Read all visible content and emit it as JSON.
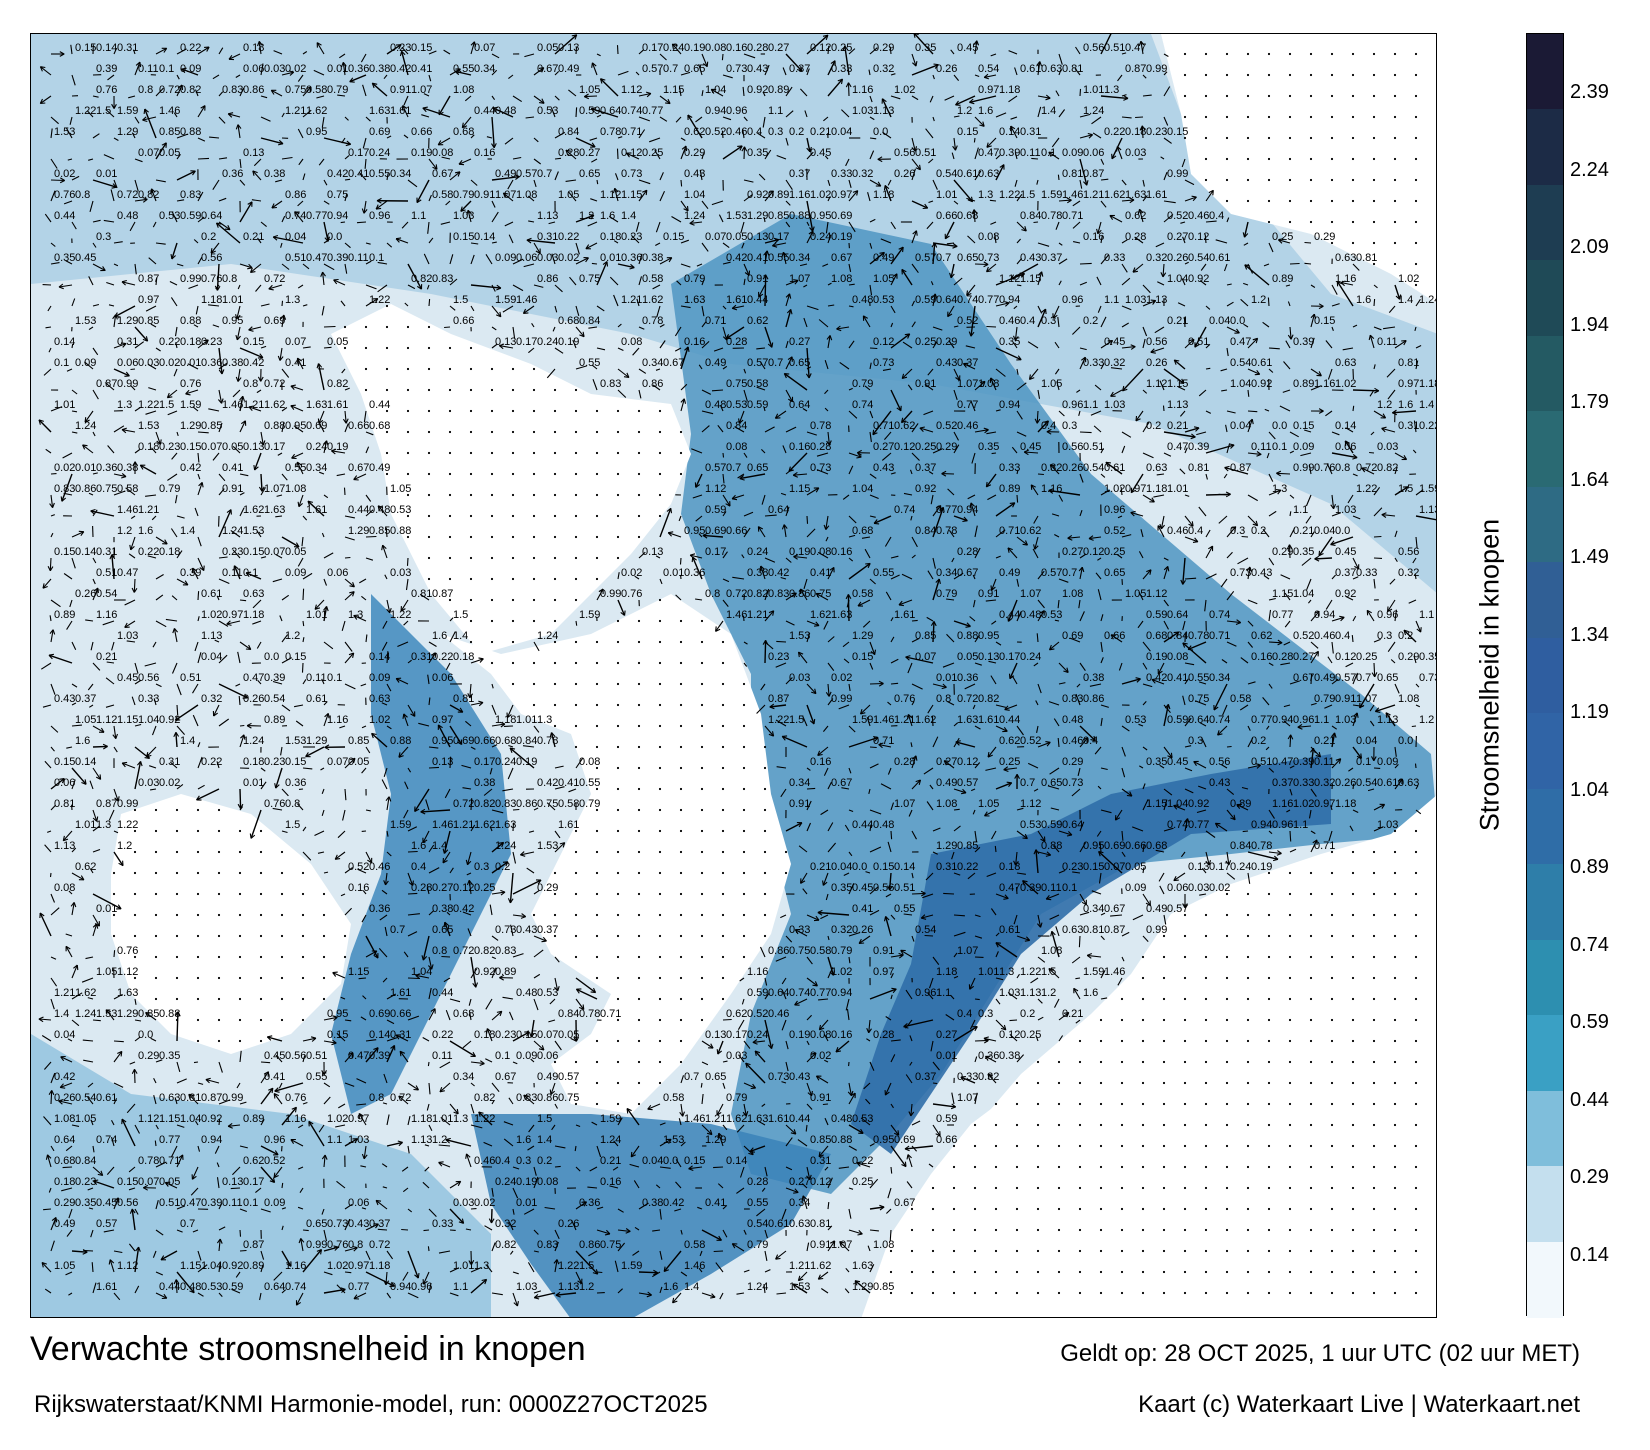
{
  "title": "Verwachte stroomsnelheid in knopen",
  "subtitle": "Rijkswaterstaat/KNMI Harmonie-model, run: 0000Z27OCT2025",
  "valid_time": "Geldt op: 28 OCT 2025, 1 uur UTC (02 uur MET)",
  "credit": "Kaart (c) Waterkaart Live | Waterkaart.net",
  "colorbar": {
    "label": "Stroomsnelheid in knopen",
    "ticks": [
      "2.39",
      "2.24",
      "2.09",
      "1.94",
      "1.79",
      "1.64",
      "1.49",
      "1.34",
      "1.19",
      "1.04",
      "0.89",
      "0.74",
      "0.59",
      "0.44",
      "0.29",
      "0.14"
    ],
    "colors": [
      "#1b1a35",
      "#1c2b46",
      "#1e3d52",
      "#1f4a57",
      "#245a63",
      "#2a6a73",
      "#2e6b84",
      "#305f95",
      "#2f5ea0",
      "#3064a6",
      "#2f6da7",
      "#2e7ea9",
      "#2d8fb0",
      "#3aa0c4",
      "#7fbedb",
      "#c4dfee",
      "#f2f8fc"
    ]
  },
  "colors": {
    "land": "#ffffff",
    "sea_light": "#dce9f2",
    "sea_mid": "#5fa5cc",
    "sea_dark": "#2d6ea8",
    "arrow": "#000000"
  },
  "sample_speed_labels": [
    "0.15",
    "0.14",
    "0.31",
    "0.22",
    "0.18",
    "0.23",
    "0.15",
    "0.07",
    "0.05",
    "0.13",
    "0.17",
    "0.24",
    "0.19",
    "0.08",
    "0.16",
    "0.28",
    "0.27",
    "0.12",
    "0.25",
    "0.29",
    "0.35",
    "0.45",
    "0.56",
    "0.51",
    "0.47",
    "0.39",
    "0.11",
    "0.1",
    "0.09",
    "0.06",
    "0.03",
    "0.02",
    "0.01",
    "0.36",
    "0.38",
    "0.42",
    "0.41",
    "0.55",
    "0.34",
    "0.67",
    "0.49",
    "0.57",
    "0.7",
    "0.65",
    "0.73",
    "0.43",
    "0.37",
    "0.33",
    "0.32",
    "0.26",
    "0.54",
    "0.61",
    "0.63",
    "0.81",
    "0.87",
    "0.99",
    "0.76",
    "0.8",
    "0.72",
    "0.82",
    "0.83",
    "0.86",
    "0.75",
    "0.58",
    "0.79",
    "0.91",
    "1.07",
    "1.08",
    "1.05",
    "1.12",
    "1.15",
    "1.04",
    "0.92",
    "0.89",
    "1.16",
    "1.02",
    "0.97",
    "1.18",
    "1.01",
    "1.3",
    "1.22",
    "1.5",
    "1.59",
    "1.46",
    "1.21",
    "1.62",
    "1.63",
    "1.61",
    "0.44",
    "0.48",
    "0.53",
    "0.59",
    "0.64",
    "0.74",
    "0.77",
    "0.94",
    "0.96",
    "1.1",
    "1.03",
    "1.13",
    "1.2",
    "1.6",
    "1.4",
    "1.24",
    "1.53",
    "1.29",
    "0.85",
    "0.88",
    "0.95",
    "0.69",
    "0.66",
    "0.68",
    "0.84",
    "0.78",
    "0.71",
    "0.62",
    "0.52",
    "0.46",
    "0.4",
    "0.3",
    "0.2",
    "0.21",
    "0.04",
    "0.0"
  ]
}
